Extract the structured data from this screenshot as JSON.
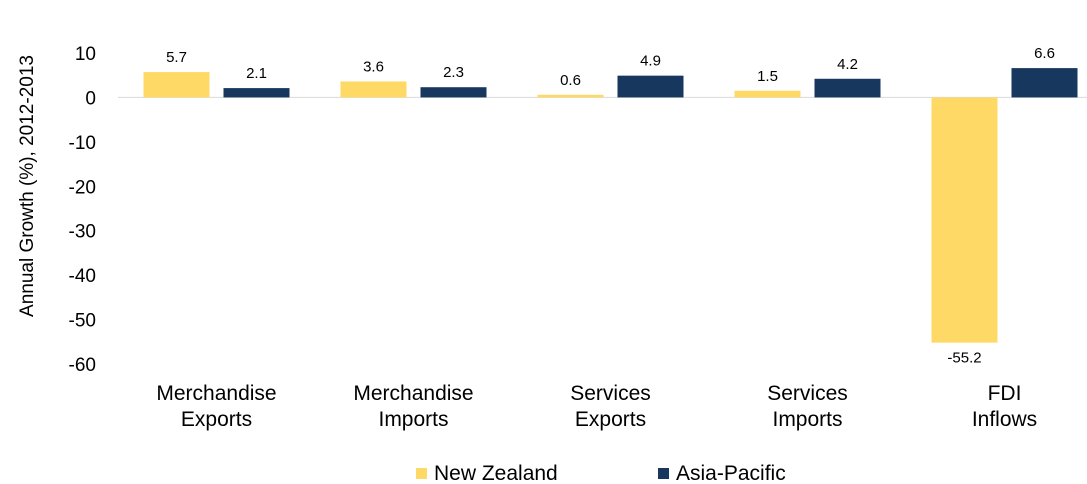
{
  "chart_data": {
    "type": "bar",
    "title": "",
    "xlabel": "",
    "ylabel": "Annual Growth  (%), 2012-2013",
    "ylim": [
      -60,
      10
    ],
    "yticks": [
      10,
      0,
      -10,
      -20,
      -30,
      -40,
      -50,
      -60
    ],
    "grid": false,
    "legend_position": "bottom",
    "categories": [
      [
        "Merchandise",
        "Exports"
      ],
      [
        "Merchandise",
        "Imports"
      ],
      [
        "Services",
        "Exports"
      ],
      [
        "Services",
        "Imports"
      ],
      [
        "FDI",
        "Inflows"
      ]
    ],
    "series": [
      {
        "name": "New Zealand",
        "color": "#FFD966",
        "values": [
          5.7,
          3.6,
          0.6,
          1.5,
          -55.2
        ],
        "labels": [
          "5.7",
          "3.6",
          "0.6",
          "1.5",
          "-55.2"
        ]
      },
      {
        "name": "Asia-Pacific",
        "color": "#17375E",
        "values": [
          2.1,
          2.3,
          4.9,
          4.2,
          6.6
        ],
        "labels": [
          "2.1",
          "2.3",
          "4.9",
          "4.2",
          "6.6"
        ]
      }
    ]
  }
}
